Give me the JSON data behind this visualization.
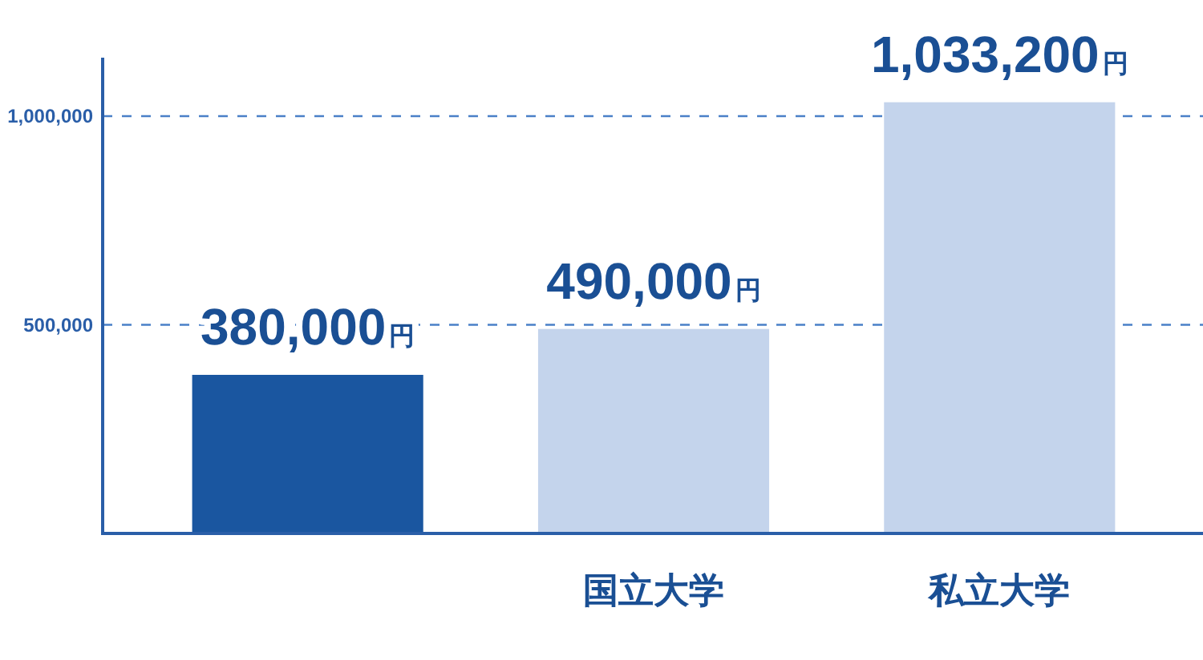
{
  "chart_data": {
    "type": "bar",
    "categories": [
      null,
      "国立大学",
      "私立大学"
    ],
    "values": [
      380000,
      490000,
      1033200
    ],
    "colors": [
      "#1a56a0",
      "#c4d4ec",
      "#c4d4ec"
    ],
    "value_labels": [
      "380,000円",
      "490,000円",
      "1,033,200円"
    ],
    "ylim": [
      0,
      1140000
    ],
    "yticks": [
      {
        "value": 500000,
        "label": "500,000"
      },
      {
        "value": 1000000,
        "label": "1,000,000"
      }
    ],
    "grid": "y"
  }
}
